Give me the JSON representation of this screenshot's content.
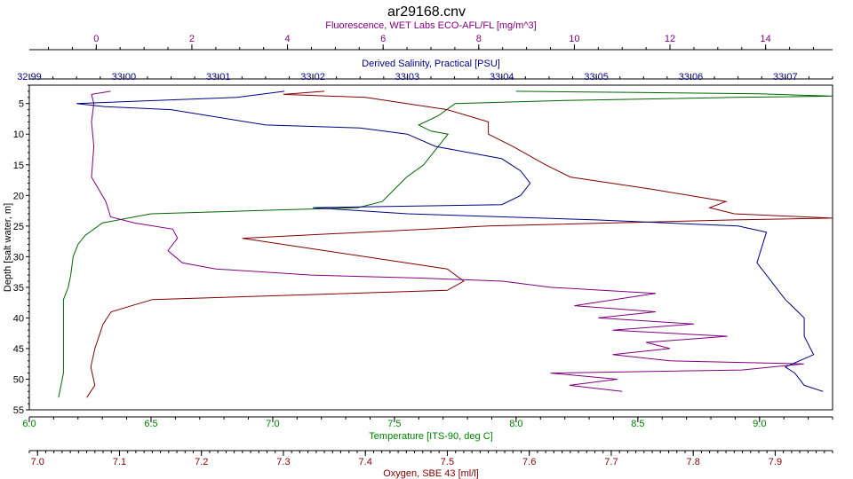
{
  "chart_data": {
    "type": "line",
    "title": "ar29168.cnv",
    "ylabel": "Depth [salt water, m]",
    "ylim": [
      55,
      2
    ],
    "yticks": [
      5,
      10,
      15,
      20,
      25,
      30,
      35,
      40,
      45,
      50,
      55
    ],
    "x_axes": [
      {
        "id": "fluor",
        "label": "Fluorescence, WET Labs ECO-AFL/FL [mg/m^3]",
        "position": "top-1",
        "range": [
          -1.4,
          15.4
        ],
        "ticks": [
          0,
          2,
          4,
          6,
          8,
          10,
          12,
          14
        ],
        "minor": 0.5,
        "color": "#800080"
      },
      {
        "id": "sal",
        "label": "Derived Salinity, Practical [PSU]",
        "position": "top-2",
        "range": [
          32.99,
          33.075
        ],
        "ticks": [
          32.99,
          33.0,
          33.01,
          33.02,
          33.03,
          33.04,
          33.05,
          33.06,
          33.07
        ],
        "tick_labels": [
          "32.99",
          "33.00",
          "33.01",
          "33.02",
          "33.03",
          "33.04",
          "33.05",
          "33.06",
          "33.07"
        ],
        "minor": 0.0025,
        "color": "#000080"
      },
      {
        "id": "temp",
        "label": "Temperature [ITS-90, deg C]",
        "position": "bottom-1",
        "range": [
          6.0,
          9.3
        ],
        "ticks": [
          6.0,
          6.5,
          7.0,
          7.5,
          8.0,
          8.5,
          9.0
        ],
        "tick_labels": [
          "6.0",
          "6.5",
          "7.0",
          "7.5",
          "8.0",
          "8.5",
          "9.0"
        ],
        "minor": 0.1,
        "color": "#008000"
      },
      {
        "id": "oxy",
        "label": "Oxygen, SBE 43 [ml/l]",
        "position": "bottom-2",
        "range": [
          6.99,
          7.97
        ],
        "ticks": [
          7.0,
          7.1,
          7.2,
          7.3,
          7.4,
          7.5,
          7.6,
          7.7,
          7.8,
          7.9
        ],
        "tick_labels": [
          "7.0",
          "7.1",
          "7.2",
          "7.3",
          "7.4",
          "7.5",
          "7.6",
          "7.7",
          "7.8",
          "7.9"
        ],
        "minor": 0.01,
        "color": "#800000"
      }
    ],
    "series": [
      {
        "axis": "temp",
        "color": "#006400",
        "points": [
          [
            6.12,
            53
          ],
          [
            6.14,
            49
          ],
          [
            6.14,
            45
          ],
          [
            6.14,
            40
          ],
          [
            6.14,
            37
          ],
          [
            6.16,
            35
          ],
          [
            6.17,
            33
          ],
          [
            6.18,
            30
          ],
          [
            6.2,
            28
          ],
          [
            6.23,
            26.5
          ],
          [
            6.3,
            24.5
          ],
          [
            6.5,
            23
          ],
          [
            7.0,
            22.4
          ],
          [
            7.35,
            22
          ],
          [
            7.45,
            21
          ],
          [
            7.5,
            19
          ],
          [
            7.55,
            17
          ],
          [
            7.62,
            15
          ],
          [
            7.68,
            12
          ],
          [
            7.72,
            10
          ],
          [
            7.65,
            9.5
          ],
          [
            7.6,
            8.5
          ],
          [
            7.68,
            7
          ],
          [
            7.75,
            5
          ],
          [
            8.2,
            4.5
          ],
          [
            8.9,
            4
          ],
          [
            9.3,
            3.8
          ],
          [
            9.0,
            3.4
          ],
          [
            8.5,
            3.2
          ],
          [
            8.0,
            3
          ]
        ]
      },
      {
        "axis": "oxy",
        "color": "#800000",
        "points": [
          [
            7.06,
            53
          ],
          [
            7.07,
            51
          ],
          [
            7.065,
            48
          ],
          [
            7.07,
            45
          ],
          [
            7.08,
            41
          ],
          [
            7.09,
            39
          ],
          [
            7.14,
            37
          ],
          [
            7.5,
            35.5
          ],
          [
            7.52,
            34
          ],
          [
            7.5,
            32
          ],
          [
            7.35,
            29
          ],
          [
            7.25,
            27
          ],
          [
            7.55,
            25
          ],
          [
            7.85,
            24
          ],
          [
            7.97,
            23.7
          ],
          [
            7.85,
            23
          ],
          [
            7.82,
            22
          ],
          [
            7.84,
            21
          ],
          [
            7.75,
            19
          ],
          [
            7.65,
            17
          ],
          [
            7.62,
            15
          ],
          [
            7.58,
            12
          ],
          [
            7.55,
            10
          ],
          [
            7.55,
            8
          ],
          [
            7.5,
            6
          ],
          [
            7.4,
            4
          ],
          [
            7.3,
            3.5
          ],
          [
            7.35,
            3
          ]
        ]
      },
      {
        "axis": "fluor",
        "color": "#800080",
        "points": [
          [
            11.0,
            52
          ],
          [
            9.9,
            51
          ],
          [
            10.9,
            50
          ],
          [
            9.5,
            49
          ],
          [
            13.5,
            48.5
          ],
          [
            14.8,
            47.5
          ],
          [
            12,
            47
          ],
          [
            10.8,
            46
          ],
          [
            12,
            45
          ],
          [
            11.5,
            44
          ],
          [
            13.2,
            43
          ],
          [
            10.8,
            42
          ],
          [
            12.5,
            41
          ],
          [
            10.5,
            40
          ],
          [
            11.7,
            39
          ],
          [
            10,
            38
          ],
          [
            11.7,
            36
          ],
          [
            9.5,
            35
          ],
          [
            8.5,
            34
          ],
          [
            6.8,
            33.5
          ],
          [
            4.5,
            33
          ],
          [
            2.5,
            32
          ],
          [
            1.8,
            31
          ],
          [
            1.5,
            29
          ],
          [
            1.7,
            27
          ],
          [
            1.6,
            25.5
          ],
          [
            0.8,
            24.5
          ],
          [
            0.3,
            23.5
          ],
          [
            0.2,
            21
          ],
          [
            -0.1,
            17
          ],
          [
            -0.05,
            12
          ],
          [
            -0.1,
            8
          ],
          [
            -0.05,
            5
          ],
          [
            -0.1,
            3.5
          ],
          [
            0.3,
            3
          ]
        ]
      },
      {
        "axis": "sal",
        "color": "#000080",
        "points": [
          [
            33.074,
            52
          ],
          [
            33.072,
            51
          ],
          [
            33.071,
            49
          ],
          [
            33.07,
            48
          ],
          [
            33.073,
            46
          ],
          [
            33.072,
            43
          ],
          [
            33.072,
            40
          ],
          [
            33.07,
            37
          ],
          [
            33.069,
            35
          ],
          [
            33.068,
            33
          ],
          [
            33.067,
            31
          ],
          [
            33.068,
            26
          ],
          [
            33.065,
            25
          ],
          [
            33.05,
            24
          ],
          [
            33.03,
            23
          ],
          [
            33.02,
            22
          ],
          [
            33.04,
            21.5
          ],
          [
            33.042,
            20
          ],
          [
            33.043,
            18
          ],
          [
            33.042,
            16
          ],
          [
            33.04,
            14
          ],
          [
            33.033,
            12
          ],
          [
            33.03,
            10
          ],
          [
            33.025,
            9
          ],
          [
            33.015,
            8.5
          ],
          [
            33.005,
            6
          ],
          [
            32.998,
            5.5
          ],
          [
            32.995,
            5
          ],
          [
            33.012,
            4
          ],
          [
            33.017,
            3
          ]
        ]
      }
    ]
  }
}
